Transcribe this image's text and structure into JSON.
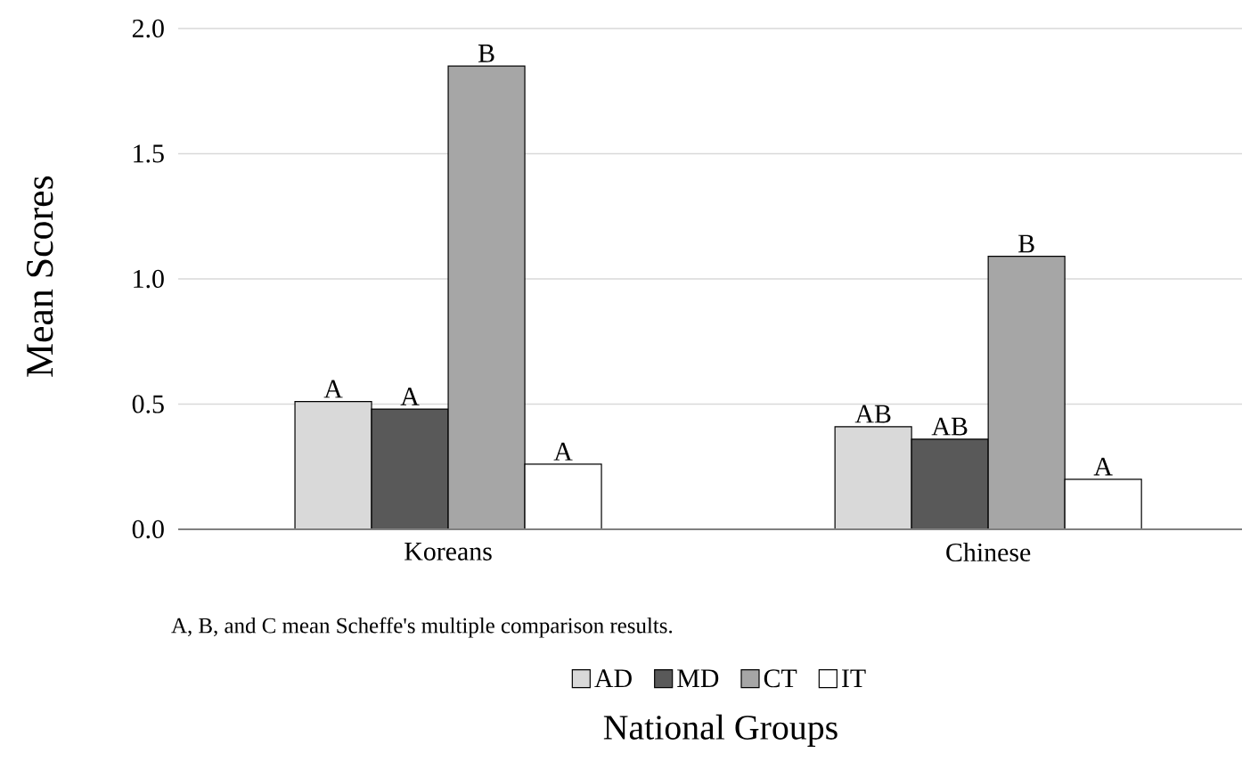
{
  "chart_data": {
    "type": "bar",
    "xlabel": "National Groups",
    "ylabel": "Mean Scores",
    "categories": [
      "Koreans",
      "Chinese"
    ],
    "series": [
      {
        "name": "AD",
        "color": "#d9d9d9",
        "values": [
          0.51,
          0.41
        ],
        "value_labels": [
          "A",
          "AB"
        ]
      },
      {
        "name": "MD",
        "color": "#595959",
        "values": [
          0.48,
          0.36
        ],
        "value_labels": [
          "A",
          "AB"
        ]
      },
      {
        "name": "CT",
        "color": "#a6a6a6",
        "values": [
          1.85,
          1.09
        ],
        "value_labels": [
          "B",
          "B"
        ]
      },
      {
        "name": "IT",
        "color": "#ffffff",
        "values": [
          0.26,
          0.2
        ],
        "value_labels": [
          "A",
          "A"
        ]
      }
    ],
    "ylim": [
      0,
      2
    ],
    "yticks": [
      {
        "value": 0,
        "label": "0.0"
      },
      {
        "value": 0.5,
        "label": "0.5"
      },
      {
        "value": 1,
        "label": "1.0"
      },
      {
        "value": 1.5,
        "label": "1.5"
      },
      {
        "value": 2,
        "label": "2.0"
      }
    ],
    "grid": "y",
    "legend": "bottom",
    "annotations": [
      "A, B, and C mean Scheffe's multiple comparison results."
    ]
  }
}
